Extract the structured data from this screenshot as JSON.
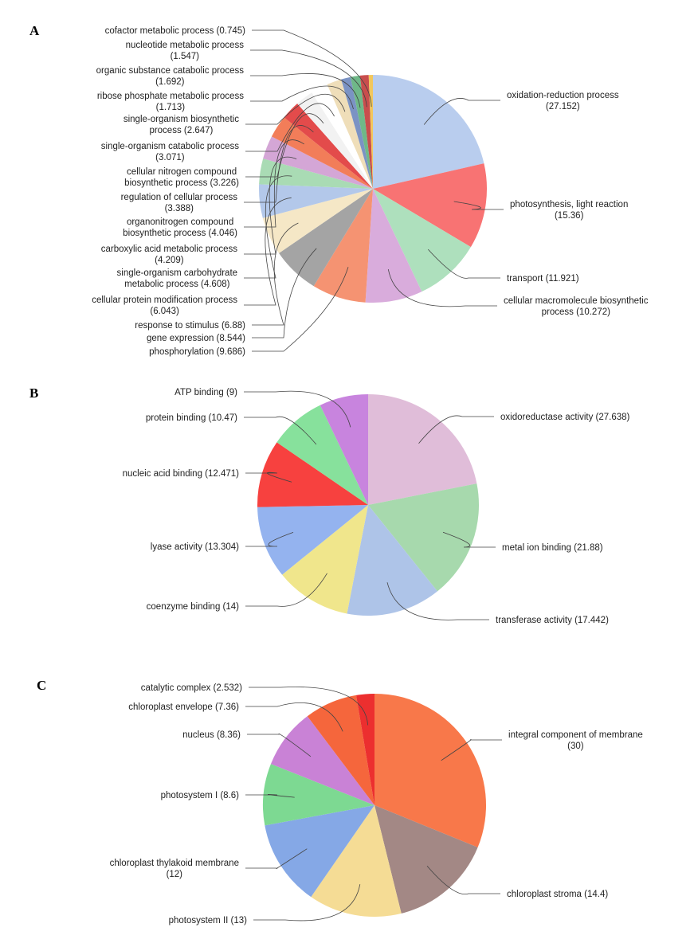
{
  "chart_data": [
    {
      "type": "pie",
      "panel_label": "A",
      "slices": [
        {
          "label": "oxidation-reduction process",
          "value": 27.152,
          "color": "#b9cdee"
        },
        {
          "label": "photosynthesis, light reaction",
          "value": 15.36,
          "color": "#f87373"
        },
        {
          "label": "transport",
          "value": 11.921,
          "color": "#aee0bd"
        },
        {
          "label": "cellular macromolecule biosynthetic process",
          "value": 10.272,
          "color": "#d9acdc"
        },
        {
          "label": "phosphorylation",
          "value": 9.686,
          "color": "#f59372"
        },
        {
          "label": "gene expression",
          "value": 8.544,
          "color": "#a4a4a4"
        },
        {
          "label": "response to stimulus",
          "value": 6.88,
          "color": "#f5e7c6"
        },
        {
          "label": "cellular protein modification process",
          "value": 6.043,
          "color": "#b3c8ea"
        },
        {
          "label": "single-organism carbohydrate metabolic process",
          "value": 4.608,
          "color": "#a9dbb4"
        },
        {
          "label": "carboxylic acid metabolic process",
          "value": 4.209,
          "color": "#d4a6d6"
        },
        {
          "label": "organonitrogen compound biosynthetic process",
          "value": 4.046,
          "color": "#f27d59"
        },
        {
          "label": "regulation of cellular process",
          "value": 3.388,
          "color": "#e34b4b"
        },
        {
          "label": "cellular nitrogen compound biosynthetic process",
          "value": 3.226,
          "color": "#f2f2f2"
        },
        {
          "label": "single-organism catabolic process",
          "value": 3.071,
          "color": "#ffffff"
        },
        {
          "label": "single-organism biosynthetic process",
          "value": 2.647,
          "color": "#efdeb9"
        },
        {
          "label": "ribose phosphate metabolic process",
          "value": 1.713,
          "color": "#7b93c4"
        },
        {
          "label": "organic substance catabolic process",
          "value": 1.692,
          "color": "#6fb888"
        },
        {
          "label": "nucleotide metabolic process",
          "value": 1.547,
          "color": "#c94d4d"
        },
        {
          "label": "cofactor metabolic process",
          "value": 0.745,
          "color": "#f2c75c"
        }
      ],
      "label_lines": [
        [
          "oxidation-reduction process",
          "(27.152)"
        ],
        [
          "photosynthesis, light reaction",
          "(15.36)"
        ],
        [
          "transport (11.921)"
        ],
        [
          "cellular macromolecule biosynthetic",
          "process (10.272)"
        ],
        [
          "phosphorylation (9.686)"
        ],
        [
          "gene expression (8.544)"
        ],
        [
          "response to stimulus (6.88)"
        ],
        [
          "cellular protein modification process",
          "(6.043)"
        ],
        [
          "single-organism carbohydrate",
          "metabolic process (4.608)"
        ],
        [
          "carboxylic acid metabolic process",
          "(4.209)"
        ],
        [
          "organonitrogen compound",
          "biosynthetic process (4.046)"
        ],
        [
          "regulation of cellular process",
          "(3.388)"
        ],
        [
          "cellular nitrogen compound",
          "biosynthetic process (3.226)"
        ],
        [
          "single-organism catabolic process",
          "(3.071)"
        ],
        [
          "single-organism biosynthetic",
          "process (2.647)"
        ],
        [
          "ribose phosphate metabolic process",
          "(1.713)"
        ],
        [
          "organic substance catabolic process",
          "(1.692)"
        ],
        [
          "nucleotide metabolic process",
          "(1.547)"
        ],
        [
          "cofactor metabolic process (0.745)"
        ]
      ]
    },
    {
      "type": "pie",
      "panel_label": "B",
      "slices": [
        {
          "label": "oxidoreductase activity",
          "value": 27.638,
          "color": "#e0bdd9"
        },
        {
          "label": "metal ion binding",
          "value": 21.88,
          "color": "#a7d9ad"
        },
        {
          "label": "transferase activity",
          "value": 17.442,
          "color": "#aec4e8"
        },
        {
          "label": "coenzyme binding",
          "value": 14,
          "color": "#f0e68c"
        },
        {
          "label": "lyase activity",
          "value": 13.304,
          "color": "#94b3ef"
        },
        {
          "label": "nucleic acid binding",
          "value": 12.471,
          "color": "#f7413f"
        },
        {
          "label": "protein binding",
          "value": 10.47,
          "color": "#87e19c"
        },
        {
          "label": "ATP binding",
          "value": 9,
          "color": "#c884de"
        }
      ],
      "label_lines": [
        [
          "oxidoreductase activity (27.638)"
        ],
        [
          "metal ion binding (21.88)"
        ],
        [
          "transferase activity (17.442)"
        ],
        [
          "coenzyme binding (14)"
        ],
        [
          "lyase activity (13.304)"
        ],
        [
          "nucleic acid binding (12.471)"
        ],
        [
          "protein binding (10.47)"
        ],
        [
          "ATP binding (9)"
        ]
      ]
    },
    {
      "type": "pie",
      "panel_label": "C",
      "slices": [
        {
          "label": "integral component of membrane",
          "value": 30,
          "color": "#f8784a"
        },
        {
          "label": "chloroplast stroma",
          "value": 14.4,
          "color": "#a38885"
        },
        {
          "label": "photosystem II",
          "value": 13,
          "color": "#f5dc95"
        },
        {
          "label": "chloroplast thylakoid membrane",
          "value": 12,
          "color": "#85a8e6"
        },
        {
          "label": "photosystem I",
          "value": 8.6,
          "color": "#7dd992"
        },
        {
          "label": "nucleus",
          "value": 8.36,
          "color": "#c982d6"
        },
        {
          "label": "chloroplast envelope",
          "value": 7.36,
          "color": "#f5663c"
        },
        {
          "label": "catalytic complex",
          "value": 2.532,
          "color": "#ec2f2f"
        }
      ],
      "label_lines": [
        [
          "integral component of membrane",
          "(30)"
        ],
        [
          "chloroplast stroma (14.4)"
        ],
        [
          "photosystem II (13)"
        ],
        [
          "chloroplast thylakoid membrane",
          "(12)"
        ],
        [
          "photosystem I (8.6)"
        ],
        [
          "nucleus (8.36)"
        ],
        [
          "chloroplast envelope (7.36)"
        ],
        [
          "catalytic complex (2.532)"
        ]
      ]
    }
  ]
}
